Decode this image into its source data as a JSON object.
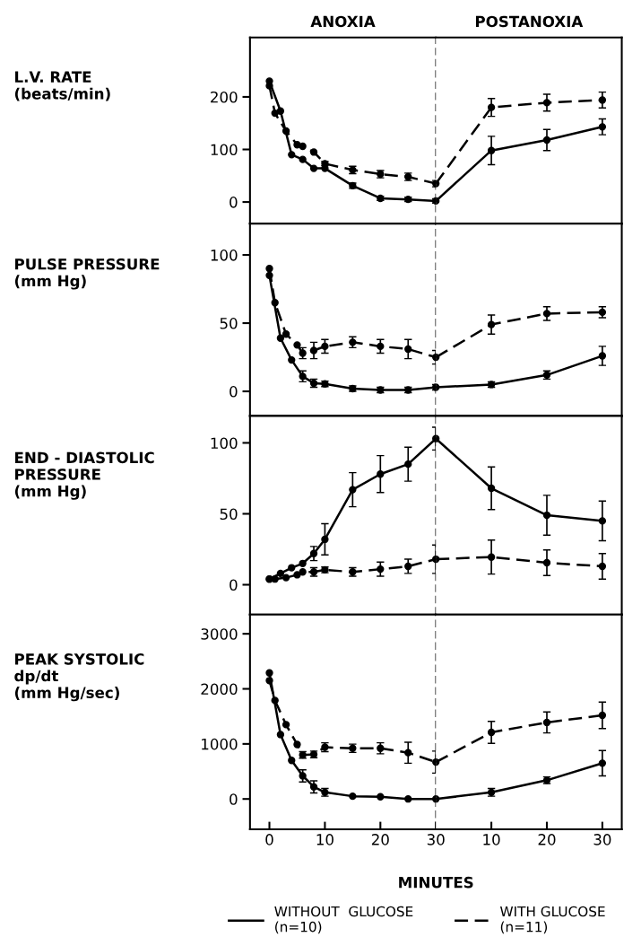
{
  "chart_data": [
    {
      "type": "line",
      "ylabel": "L.V. RATE\n(beats/min)",
      "annotations": [
        "ANOXIA"
      ],
      "xlim": [
        -3.5,
        30
      ],
      "ylim": [
        -41,
        313
      ],
      "yticks": [
        0,
        100,
        200
      ],
      "tick_labels": "y",
      "grid": false,
      "legend": false,
      "marker": "circle",
      "ref_lines": [
        {
          "axis": "x",
          "value": 30,
          "color": "#000000",
          "line_style": "dashed"
        }
      ],
      "series": [
        {
          "color": "#000000",
          "line_style": "solid",
          "x": [
            0,
            2,
            4,
            6,
            8,
            10,
            15,
            20,
            25,
            30
          ],
          "values": [
            230,
            173,
            90,
            81,
            64,
            64,
            31,
            7,
            5,
            2
          ],
          "errors": [
            null,
            null,
            null,
            null,
            null,
            null,
            5,
            4,
            4,
            4
          ]
        },
        {
          "color": "#000000",
          "line_style": "dashed",
          "x": [
            0,
            1,
            3,
            5,
            6,
            8,
            10,
            15,
            20,
            25,
            30
          ],
          "values": [
            221,
            169,
            135,
            109,
            106,
            95,
            73,
            61,
            53,
            48,
            35
          ],
          "errors": [
            null,
            null,
            null,
            null,
            null,
            null,
            4,
            7,
            7,
            7,
            6
          ]
        }
      ]
    },
    {
      "type": "line",
      "annotations": [
        "POSTANOXIA"
      ],
      "xlim": [
        0,
        33.5
      ],
      "ylim": [
        -41,
        313
      ],
      "tick_labels": false,
      "grid": false,
      "legend": false,
      "marker": "circle",
      "series": [
        {
          "color": "#000000",
          "line_style": "solid",
          "x": [
            0,
            10,
            20,
            30
          ],
          "values": [
            2,
            98,
            118,
            143
          ],
          "errors": [
            null,
            27,
            20,
            15
          ]
        },
        {
          "color": "#000000",
          "line_style": "dashed",
          "x": [
            0,
            10,
            20,
            30
          ],
          "values": [
            35,
            180,
            189,
            194
          ],
          "errors": [
            null,
            17,
            16,
            15
          ]
        }
      ]
    },
    {
      "type": "line",
      "ylabel": "PULSE PRESSURE\n(mm Hg)",
      "xlim": [
        -3.5,
        30
      ],
      "ylim": [
        -18,
        123
      ],
      "yticks": [
        0,
        50,
        100
      ],
      "tick_labels": "y",
      "grid": false,
      "legend": false,
      "marker": "circle",
      "ref_lines": [
        {
          "axis": "x",
          "value": 30,
          "color": "#000000",
          "line_style": "dashed"
        }
      ],
      "series": [
        {
          "color": "#000000",
          "line_style": "solid",
          "x": [
            0,
            2,
            4,
            6,
            8,
            10,
            15,
            20,
            25,
            30
          ],
          "values": [
            85,
            39,
            23,
            11,
            6,
            5.5,
            2,
            1,
            1,
            3
          ],
          "errors": [
            null,
            null,
            null,
            4,
            3,
            2,
            2,
            2,
            2,
            2
          ]
        },
        {
          "color": "#000000",
          "line_style": "dashed",
          "x": [
            0,
            1,
            3,
            5,
            6,
            8,
            10,
            15,
            20,
            25,
            30
          ],
          "values": [
            90,
            65,
            42,
            34,
            28,
            30,
            33,
            36,
            33,
            31,
            25
          ],
          "errors": [
            null,
            null,
            null,
            null,
            4,
            6,
            5,
            4,
            5,
            7,
            5
          ]
        }
      ]
    },
    {
      "type": "line",
      "xlim": [
        0,
        33.5
      ],
      "ylim": [
        -18,
        123
      ],
      "tick_labels": false,
      "grid": false,
      "legend": false,
      "marker": "circle",
      "series": [
        {
          "color": "#000000",
          "line_style": "solid",
          "x": [
            0,
            10,
            20,
            30
          ],
          "values": [
            3,
            5,
            12,
            26
          ],
          "errors": [
            null,
            2,
            3,
            7
          ]
        },
        {
          "color": "#000000",
          "line_style": "dashed",
          "x": [
            0,
            10,
            20,
            30
          ],
          "values": [
            25,
            49,
            57,
            58
          ],
          "errors": [
            null,
            7,
            5,
            4
          ]
        }
      ]
    },
    {
      "type": "line",
      "ylabel": "END - DIASTOLIC\nPRESSURE\n(mm Hg)",
      "xlim": [
        -3.5,
        30
      ],
      "ylim": [
        -21,
        119
      ],
      "yticks": [
        0,
        50,
        100
      ],
      "tick_labels": "y",
      "grid": false,
      "legend": false,
      "marker": "circle",
      "ref_lines": [
        {
          "axis": "x",
          "value": 30,
          "color": "#000000",
          "line_style": "dashed"
        }
      ],
      "series": [
        {
          "color": "#000000",
          "line_style": "solid",
          "x": [
            0,
            2,
            4,
            6,
            8,
            10,
            15,
            20,
            25,
            30
          ],
          "values": [
            4,
            8,
            12,
            15,
            22,
            32,
            67,
            78,
            85,
            103
          ],
          "errors": [
            null,
            null,
            null,
            null,
            5,
            11,
            12,
            13,
            12,
            8
          ]
        },
        {
          "color": "#000000",
          "line_style": "dashed",
          "x": [
            0,
            1,
            3,
            5,
            6,
            8,
            10,
            15,
            20,
            25,
            30
          ],
          "values": [
            4,
            4,
            5,
            7,
            9,
            9,
            10.5,
            9,
            11,
            13,
            18
          ],
          "errors": [
            null,
            null,
            null,
            null,
            null,
            3,
            2,
            3,
            5,
            5,
            10
          ]
        }
      ]
    },
    {
      "type": "line",
      "xlim": [
        0,
        33.5
      ],
      "ylim": [
        -21,
        119
      ],
      "tick_labels": false,
      "grid": false,
      "legend": false,
      "marker": "circle",
      "series": [
        {
          "color": "#000000",
          "line_style": "solid",
          "x": [
            0,
            10,
            20,
            30
          ],
          "values": [
            103,
            68,
            49,
            45
          ],
          "errors": [
            null,
            15,
            14,
            14
          ]
        },
        {
          "color": "#000000",
          "line_style": "dashed",
          "x": [
            0,
            10,
            20,
            30
          ],
          "values": [
            18,
            19.5,
            15.5,
            13
          ],
          "errors": [
            null,
            12,
            9,
            9
          ]
        }
      ]
    },
    {
      "type": "line",
      "ylabel": "PEAK SYSTOLIC\ndp/dt\n(mm Hg/sec)",
      "xlabel": "MINUTES",
      "xlim": [
        -3.5,
        30
      ],
      "xticks": [
        0,
        10,
        20,
        30
      ],
      "ylim": [
        -550,
        3350
      ],
      "yticks": [
        0,
        1000,
        2000,
        3000
      ],
      "grid": false,
      "legend": "bottom",
      "marker": "circle",
      "ref_lines": [
        {
          "axis": "x",
          "value": 30,
          "color": "#000000",
          "line_style": "dashed"
        }
      ],
      "series": [
        {
          "name": "WITHOUT  GLUCOSE\n(n=10)",
          "color": "#000000",
          "line_style": "solid",
          "x": [
            0,
            2,
            4,
            6,
            8,
            10,
            15,
            20,
            25,
            30
          ],
          "values": [
            2290,
            1170,
            700,
            420,
            220,
            120,
            50,
            40,
            0,
            0
          ],
          "errors": [
            null,
            null,
            null,
            110,
            110,
            70,
            null,
            null,
            null,
            null
          ]
        },
        {
          "name": "WITH GLUCOSE\n(n=11)",
          "color": "#000000",
          "line_style": "dashed",
          "x": [
            0,
            1,
            3,
            5,
            6,
            8,
            10,
            15,
            20,
            25,
            30
          ],
          "values": [
            2150,
            1790,
            1350,
            990,
            800,
            810,
            940,
            920,
            920,
            840,
            670
          ],
          "errors": [
            null,
            null,
            null,
            null,
            60,
            60,
            80,
            75,
            100,
            190,
            200
          ]
        }
      ]
    },
    {
      "type": "line",
      "xlim": [
        0,
        33.5
      ],
      "xticks": [
        10,
        20,
        30
      ],
      "ylim": [
        -550,
        3350
      ],
      "tick_labels": "x",
      "grid": false,
      "legend": false,
      "marker": "circle",
      "series": [
        {
          "color": "#000000",
          "line_style": "solid",
          "x": [
            0,
            10,
            20,
            30
          ],
          "values": [
            0,
            120,
            340,
            650
          ],
          "errors": [
            null,
            70,
            60,
            230
          ]
        },
        {
          "color": "#000000",
          "line_style": "dashed",
          "x": [
            0,
            10,
            20,
            30
          ],
          "values": [
            670,
            1210,
            1390,
            1520
          ],
          "errors": [
            null,
            200,
            190,
            240
          ]
        }
      ]
    }
  ]
}
